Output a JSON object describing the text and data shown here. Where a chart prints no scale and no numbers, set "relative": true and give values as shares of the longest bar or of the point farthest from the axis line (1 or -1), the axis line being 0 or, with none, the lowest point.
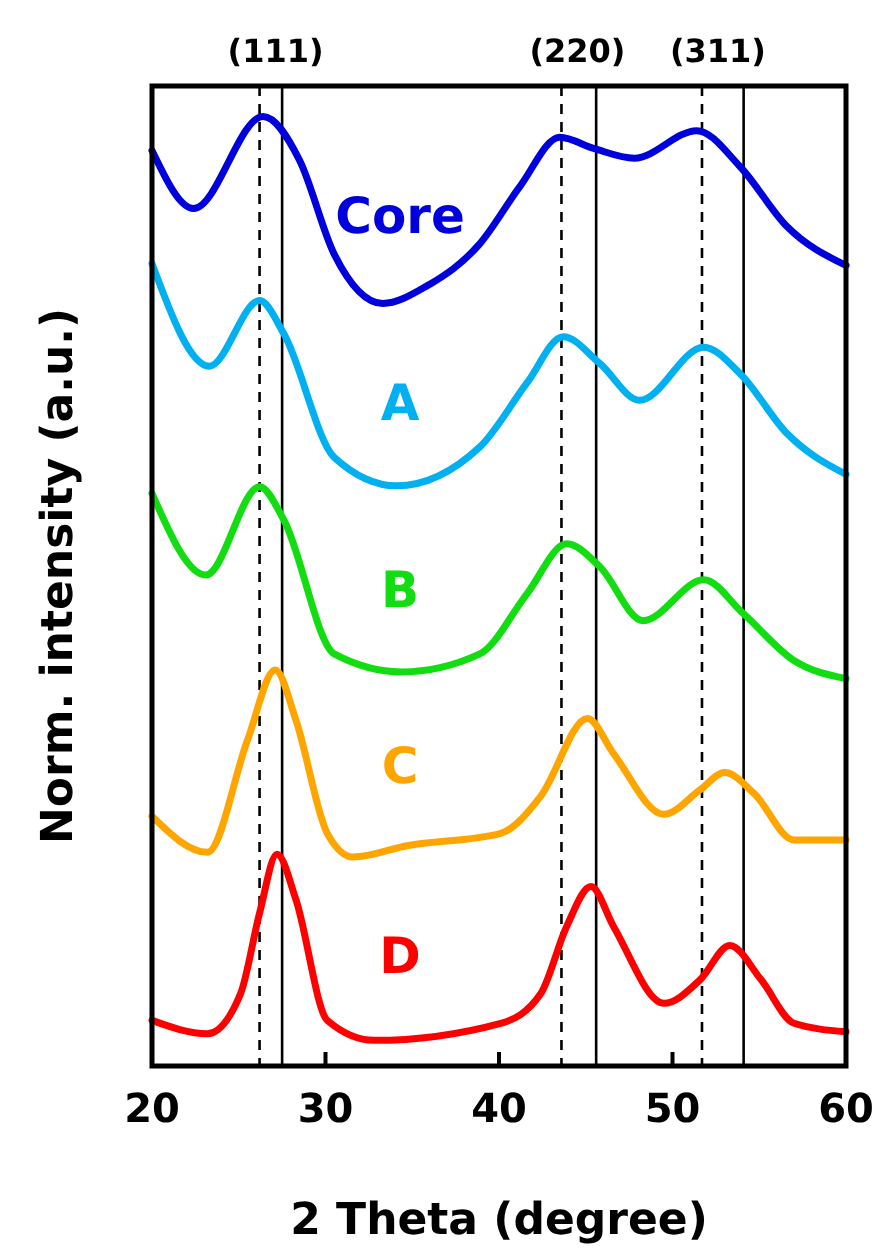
{
  "chart_data": {
    "type": "line",
    "xlabel": "2 Theta (degree)",
    "ylabel": "Norm. intensity (a.u.)",
    "relative": true,
    "xlim": [
      20,
      60
    ],
    "xticks": [
      20,
      30,
      40,
      50,
      60
    ],
    "line_style": "solid",
    "marker": "none",
    "series": [
      {
        "name": "Core",
        "color": "#0000dd",
        "x": [
          20,
          22.4,
          26.4,
          28.5,
          30.5,
          33.3,
          35.8,
          38.9,
          41.2,
          43.5,
          45.5,
          47.8,
          51.4,
          53.9,
          56.6,
          60
        ],
        "values": [
          0.964,
          0.903,
          1.0,
          0.954,
          0.855,
          0.803,
          0.821,
          0.866,
          0.926,
          0.978,
          0.966,
          0.956,
          0.985,
          0.947,
          0.884,
          0.843
        ]
      },
      {
        "name": "A",
        "color": "#00b0f0",
        "x": [
          20,
          23.3,
          26.2,
          27.6,
          30.5,
          34.1,
          38.9,
          41.6,
          43.7,
          45.8,
          48.1,
          51.8,
          53.9,
          56.6,
          60
        ],
        "values": [
          0.845,
          0.737,
          0.806,
          0.771,
          0.641,
          0.611,
          0.652,
          0.719,
          0.768,
          0.74,
          0.701,
          0.757,
          0.729,
          0.666,
          0.623
        ]
      },
      {
        "name": "B",
        "color": "#11dd11",
        "x": [
          20,
          23.1,
          26.2,
          27.6,
          30.5,
          34.4,
          38.9,
          41.6,
          43.9,
          45.8,
          48.3,
          51.8,
          54.1,
          57,
          60
        ],
        "values": [
          0.603,
          0.517,
          0.61,
          0.575,
          0.434,
          0.415,
          0.434,
          0.497,
          0.55,
          0.526,
          0.469,
          0.512,
          0.476,
          0.427,
          0.408
        ]
      },
      {
        "name": "C",
        "color": "#ffa500",
        "x": [
          20,
          23.2,
          25.5,
          27.1,
          28.3,
          30.1,
          31.6,
          34.7,
          40.1,
          42.4,
          45.1,
          46.6,
          49.5,
          51.6,
          53,
          54.7,
          57,
          60
        ],
        "values": [
          0.263,
          0.225,
          0.343,
          0.417,
          0.364,
          0.245,
          0.22,
          0.232,
          0.245,
          0.284,
          0.366,
          0.329,
          0.265,
          0.291,
          0.309,
          0.287,
          0.238,
          0.238
        ]
      },
      {
        "name": "D",
        "color": "#ff0000",
        "x": [
          20,
          23.2,
          25.1,
          26.2,
          27.2,
          28.3,
          30.1,
          32.8,
          40.1,
          42.4,
          43.9,
          45.3,
          46.6,
          49.5,
          51.6,
          53.3,
          55.1,
          57,
          60
        ],
        "values": [
          0.048,
          0.034,
          0.076,
          0.161,
          0.223,
          0.175,
          0.048,
          0.027,
          0.045,
          0.076,
          0.147,
          0.189,
          0.147,
          0.066,
          0.091,
          0.127,
          0.091,
          0.045,
          0.036
        ]
      }
    ],
    "ref_lines": [
      {
        "axis": "x",
        "value": 26.2,
        "line_style": "dashed"
      },
      {
        "axis": "x",
        "value": 27.5,
        "line_style": "solid"
      },
      {
        "axis": "x",
        "value": 43.6,
        "line_style": "dashed"
      },
      {
        "axis": "x",
        "value": 45.6,
        "line_style": "solid"
      },
      {
        "axis": "x",
        "value": 51.7,
        "line_style": "dashed"
      },
      {
        "axis": "x",
        "value": 54.1,
        "line_style": "solid"
      }
    ],
    "annotations": [
      "(111)",
      "(220)",
      "(311)"
    ]
  }
}
